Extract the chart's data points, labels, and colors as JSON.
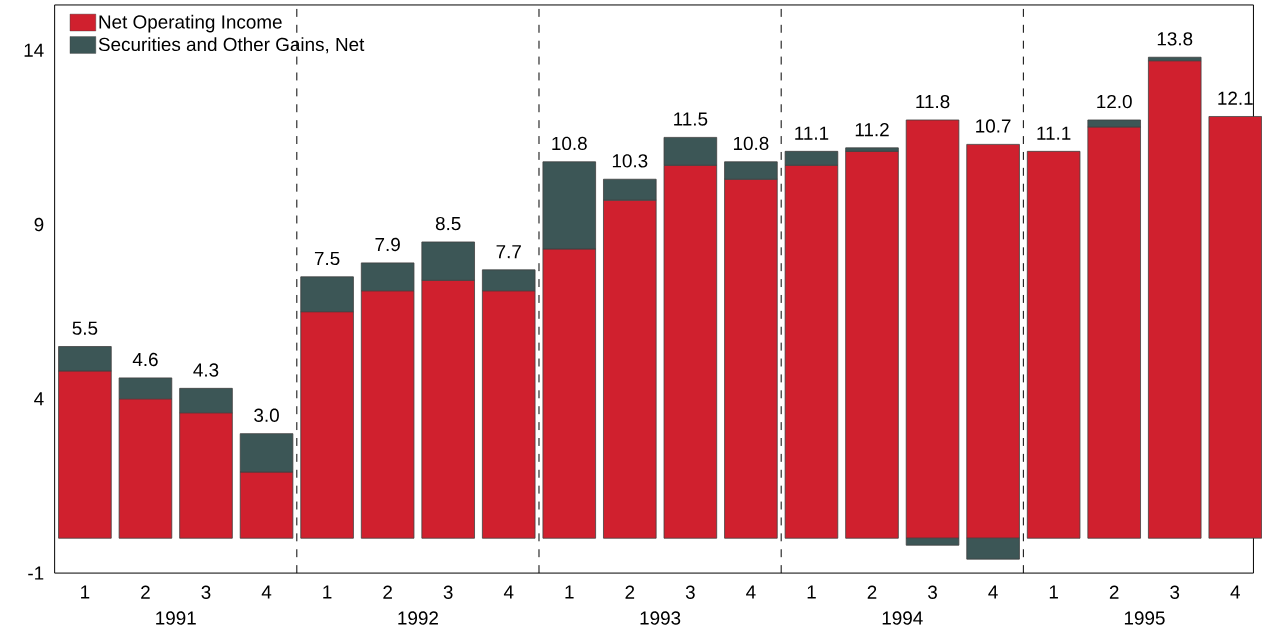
{
  "chart_data": {
    "type": "bar",
    "stacked": true,
    "categories": [
      "1",
      "2",
      "3",
      "4",
      "1",
      "2",
      "3",
      "4",
      "1",
      "2",
      "3",
      "4",
      "1",
      "2",
      "3",
      "4",
      "1",
      "2",
      "3",
      "4"
    ],
    "series": [
      {
        "name": "Net Operating Income",
        "color": "#d0202e",
        "values": [
          4.8,
          4.0,
          3.6,
          1.9,
          6.5,
          7.1,
          7.4,
          7.1,
          8.3,
          9.7,
          10.7,
          10.3,
          10.7,
          11.1,
          12.0,
          11.3,
          11.1,
          11.8,
          13.7,
          12.1
        ]
      },
      {
        "name": "Securities and Other Gains, Net",
        "color": "#3c5656",
        "values": [
          0.7,
          0.6,
          0.7,
          1.1,
          1.0,
          0.8,
          1.1,
          0.6,
          2.5,
          0.6,
          0.8,
          0.5,
          0.4,
          0.1,
          -0.2,
          -0.6,
          0.0,
          0.2,
          0.1,
          0.0
        ]
      }
    ],
    "totals": [
      "5.5",
      "4.6",
      "4.3",
      "3.0",
      "7.5",
      "7.9",
      "8.5",
      "7.7",
      "10.8",
      "10.3",
      "11.5",
      "10.8",
      "11.1",
      "11.2",
      "11.8",
      "10.7",
      "11.1",
      "12.0",
      "13.8",
      "12.1"
    ],
    "annotations": [
      "1991",
      "1992",
      "1993",
      "1994",
      "1995"
    ],
    "ylim": [
      -1,
      15.3
    ],
    "yticks": [
      -1,
      4,
      9,
      14
    ],
    "legend": "top left",
    "grid": false
  }
}
